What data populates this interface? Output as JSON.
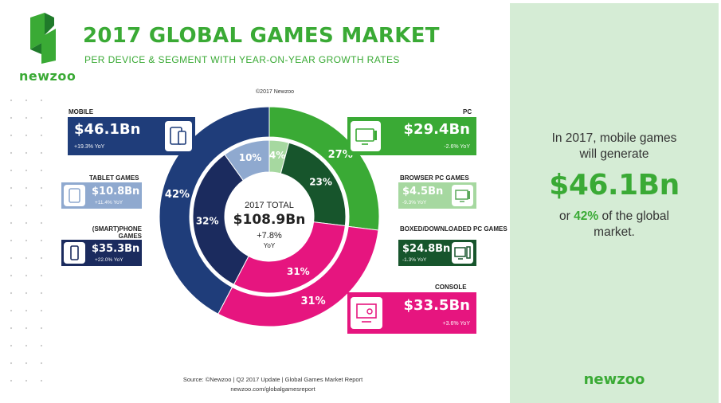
{
  "header": {
    "brand": "newzoo",
    "title": "2017 GLOBAL GAMES MARKET",
    "subtitle": "PER DEVICE & SEGMENT WITH YEAR-ON-YEAR GROWTH RATES",
    "copyright": "©2017 Newzoo"
  },
  "center": {
    "label": "2017 TOTAL",
    "value": "$108.9Bn",
    "growth": "+7.8%",
    "growth_unit": "YoY"
  },
  "segments": {
    "mobile": {
      "label": "MOBILE",
      "value": "$46.1Bn",
      "growth": "+19.3% YoY",
      "icon": "tablet-phone-icon"
    },
    "tablet": {
      "label": "TABLET GAMES",
      "value": "$10.8Bn",
      "growth": "+11.4% YoY",
      "icon": "tablet-icon"
    },
    "phone": {
      "label": "(SMART)PHONE GAMES",
      "value": "$35.3Bn",
      "growth": "+22.0% YoY",
      "icon": "phone-icon"
    },
    "pc": {
      "label": "PC",
      "value": "$29.4Bn",
      "growth": "-2.6% YoY",
      "icon": "monitor-icon"
    },
    "browser": {
      "label": "BROWSER PC GAMES",
      "value": "$4.5Bn",
      "growth": "-9.3% YoY",
      "icon": "browser-icon"
    },
    "boxed": {
      "label": "BOXED/DOWNLOADED PC GAMES",
      "value": "$24.8Bn",
      "growth": "-1.3% YoY",
      "icon": "pc-tower-icon"
    },
    "console": {
      "label": "CONSOLE",
      "value": "$33.5Bn",
      "growth": "+3.6% YoY",
      "icon": "tv-console-icon"
    }
  },
  "colors": {
    "mobile": "#1f3d7a",
    "tablet": "#8fa9cf",
    "phone": "#1b2b5e",
    "pc": "#3aaa35",
    "browser": "#a6d8a0",
    "boxed": "#17552c",
    "console": "#e6157f",
    "brand_green": "#3aaa35",
    "panel_bg": "#d5ecd5"
  },
  "source": {
    "line1": "Source: ©Newzoo | Q2 2017 Update | Global Games Market Report",
    "line2": "newzoo.com/globalgamesreport"
  },
  "panel": {
    "line1": "In 2017, mobile games",
    "line2": "will generate",
    "big_value": "$46.1Bn",
    "line3_pre": "or",
    "line3_pct": "42%",
    "line3_post": "of the global",
    "line4": "market.",
    "brand": "newzoo"
  },
  "chart_data": {
    "type": "pie",
    "title": "2017 GLOBAL GAMES MARKET",
    "subtitle": "PER DEVICE & SEGMENT WITH YEAR-ON-YEAR GROWTH RATES",
    "total": 108.9,
    "unit": "$Bn",
    "outer_ring": [
      {
        "name": "PC",
        "value": 29.4,
        "percent": 27,
        "growth": -2.6
      },
      {
        "name": "CONSOLE",
        "value": 33.5,
        "percent": 31,
        "growth": 3.6
      },
      {
        "name": "MOBILE",
        "value": 46.1,
        "percent": 42,
        "growth": 19.3
      }
    ],
    "inner_ring": [
      {
        "name": "BROWSER PC GAMES",
        "value": 4.5,
        "percent": 4,
        "growth": -9.3
      },
      {
        "name": "BOXED/DOWNLOADED PC GAMES",
        "value": 24.8,
        "percent": 23,
        "growth": -1.3
      },
      {
        "name": "CONSOLE",
        "value": 33.5,
        "percent": 31,
        "growth": 3.6
      },
      {
        "name": "(SMART)PHONE GAMES",
        "value": 35.3,
        "percent": 32,
        "growth": 22.0
      },
      {
        "name": "TABLET GAMES",
        "value": 10.8,
        "percent": 10,
        "growth": 11.4
      }
    ]
  }
}
